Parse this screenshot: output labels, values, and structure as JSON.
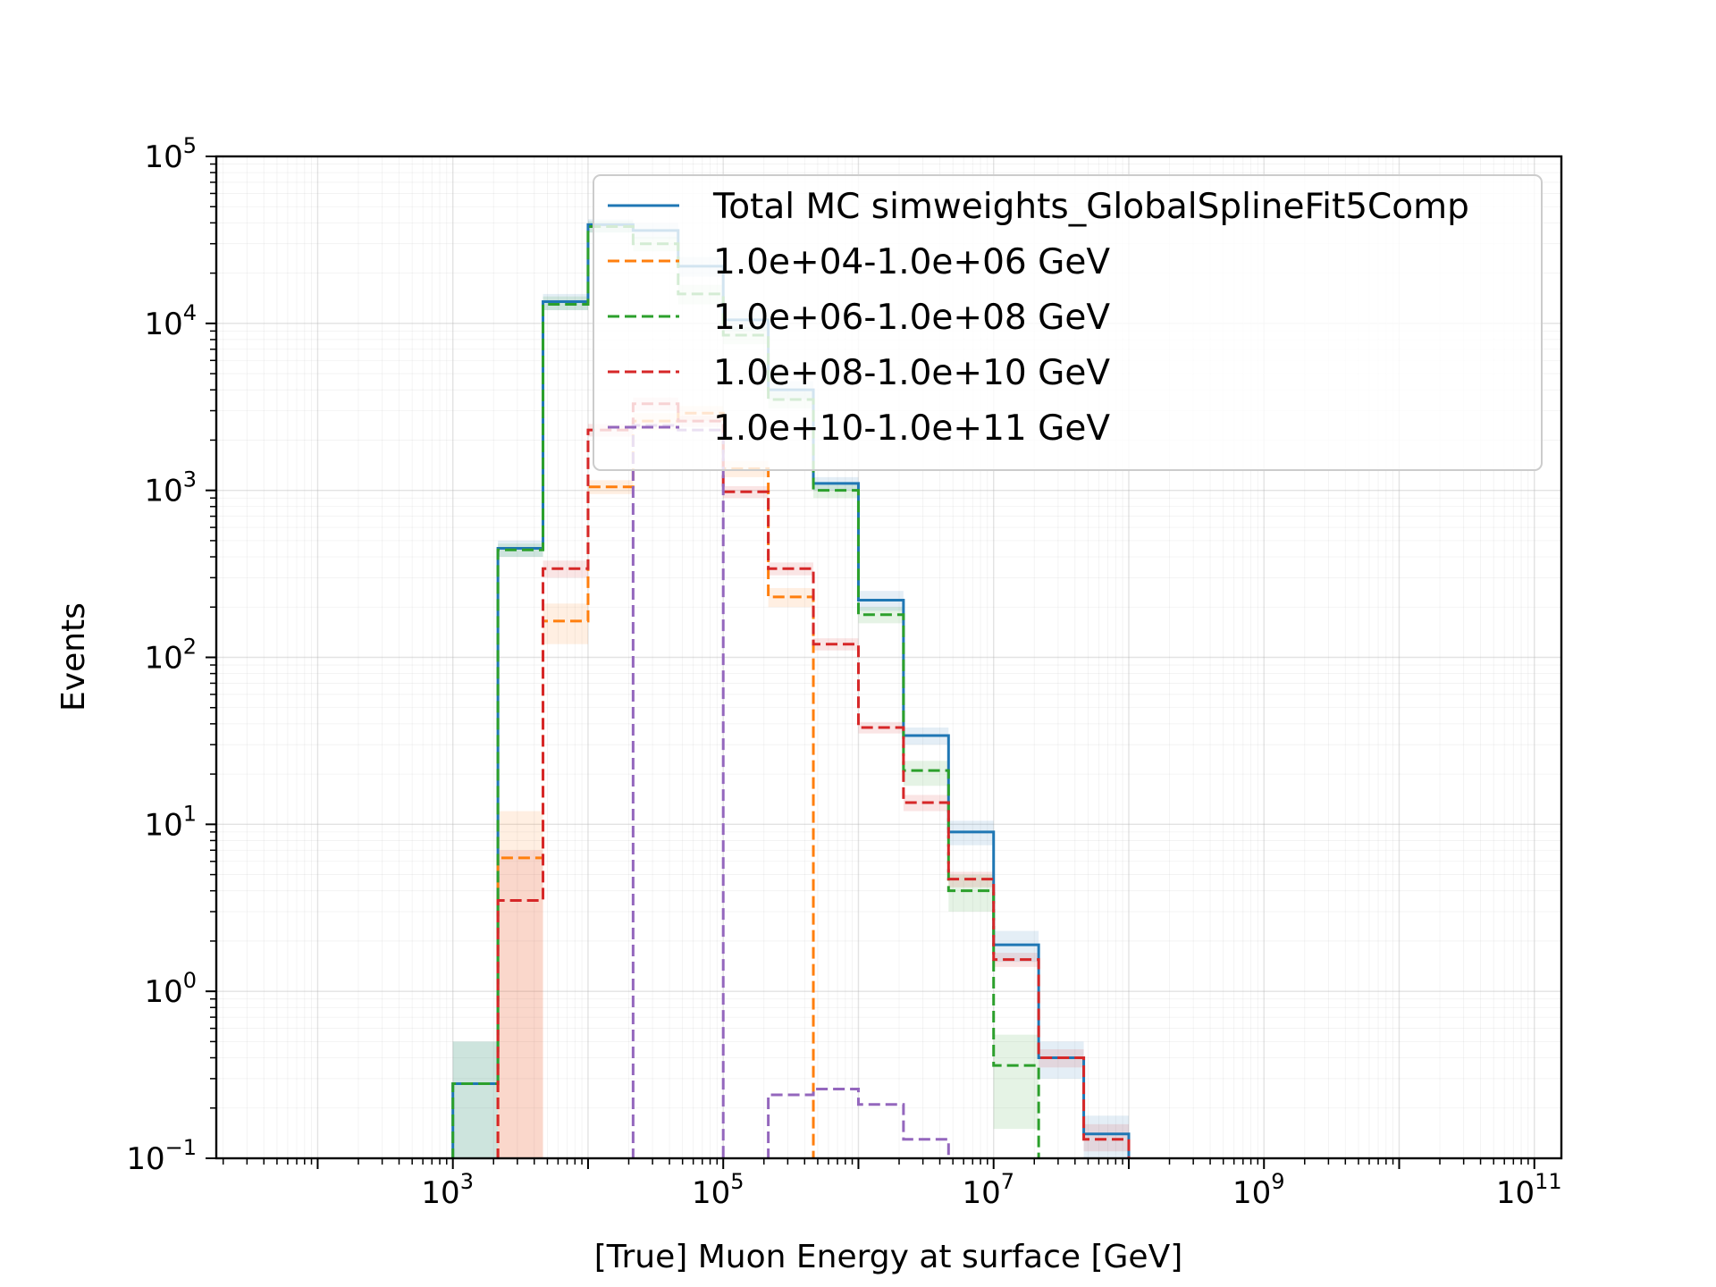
{
  "chart_data": {
    "type": "step-histogram",
    "title": "",
    "xlabel": "[True] Muon Energy at surface [GeV]",
    "ylabel": "Events",
    "xscale": "log",
    "yscale": "log",
    "xlim_log10": [
      1.25,
      11.2
    ],
    "ylim_log10": [
      -1,
      5
    ],
    "grid": true,
    "legend_position": "upper-right",
    "x_ticks": [
      {
        "base": "10",
        "exp": "3",
        "log": 3
      },
      {
        "base": "10",
        "exp": "5",
        "log": 5
      },
      {
        "base": "10",
        "exp": "7",
        "log": 7
      },
      {
        "base": "10",
        "exp": "9",
        "log": 9
      },
      {
        "base": "10",
        "exp": "11",
        "log": 11
      }
    ],
    "y_ticks": [
      {
        "base": "10",
        "exp": "−1",
        "log": -1
      },
      {
        "base": "10",
        "exp": "0",
        "log": 0
      },
      {
        "base": "10",
        "exp": "1",
        "log": 1
      },
      {
        "base": "10",
        "exp": "2",
        "log": 2
      },
      {
        "base": "10",
        "exp": "3",
        "log": 3
      },
      {
        "base": "10",
        "exp": "4",
        "log": 4
      },
      {
        "base": "10",
        "exp": "5",
        "log": 5
      }
    ],
    "bin_edges_log10": [
      3.0,
      3.3333,
      3.6667,
      4.0,
      4.3333,
      4.6667,
      5.0,
      5.3333,
      5.6667,
      6.0,
      6.3333,
      6.6667,
      7.0,
      7.3333,
      7.6667,
      8.0,
      8.3333,
      8.6667,
      9.0
    ],
    "series": [
      {
        "name": "Total MC simweights_GlobalSplineFit5Comp",
        "color": "#1f77b4",
        "dash": "solid",
        "values": [
          0.28,
          450,
          13500,
          39000,
          36000,
          22000,
          10500,
          4000,
          1100,
          220,
          34,
          9,
          1.9,
          0.4,
          0.14,
          null,
          null,
          null
        ],
        "band": [
          [
            0.1,
            0.5
          ],
          [
            400,
            500
          ],
          [
            12000,
            15000
          ],
          [
            35000,
            42000
          ],
          [
            32000,
            40000
          ],
          [
            19000,
            25000
          ],
          [
            9000,
            12000
          ],
          [
            3500,
            4500
          ],
          [
            1000,
            1200
          ],
          [
            190,
            250
          ],
          [
            30,
            38
          ],
          [
            7.5,
            10.5
          ],
          [
            1.5,
            2.3
          ],
          [
            0.3,
            0.5
          ],
          [
            0.1,
            0.18
          ],
          null,
          null,
          null
        ]
      },
      {
        "name": "1.0e+04-1.0e+06 GeV",
        "color": "#ff7f0e",
        "dash": "dashed",
        "values": [
          null,
          6.3,
          165,
          1050,
          2600,
          2900,
          1350,
          230,
          null,
          null,
          null,
          null,
          null,
          null,
          null,
          null,
          null,
          null
        ],
        "band": [
          null,
          [
            0.1,
            12
          ],
          [
            120,
            210
          ],
          [
            950,
            1150
          ],
          [
            2300,
            2900
          ],
          [
            2600,
            3200
          ],
          [
            1200,
            1500
          ],
          [
            200,
            260
          ],
          null,
          null,
          null,
          null,
          null,
          null,
          null,
          null,
          null,
          null
        ]
      },
      {
        "name": "1.0e+06-1.0e+08 GeV",
        "color": "#2ca02c",
        "dash": "dashed",
        "values": [
          0.28,
          440,
          13000,
          38000,
          30000,
          15000,
          8500,
          3500,
          1000,
          180,
          21,
          4,
          0.36,
          null,
          null,
          null,
          null,
          null
        ],
        "band": [
          [
            0.1,
            0.5
          ],
          [
            400,
            480
          ],
          [
            12000,
            14500
          ],
          [
            35000,
            41000
          ],
          [
            27000,
            33000
          ],
          [
            13000,
            17000
          ],
          [
            7500,
            9500
          ],
          [
            3100,
            3900
          ],
          [
            900,
            1100
          ],
          [
            160,
            200
          ],
          [
            17,
            24
          ],
          [
            3,
            5
          ],
          [
            0.15,
            0.55
          ],
          null,
          null,
          null,
          null,
          null
        ]
      },
      {
        "name": "1.0e+08-1.0e+10 GeV",
        "color": "#d62728",
        "dash": "dashed",
        "values": [
          null,
          3.5,
          340,
          2300,
          3300,
          2600,
          980,
          340,
          120,
          38,
          13.5,
          4.7,
          1.55,
          0.4,
          0.13,
          null,
          null,
          null
        ],
        "band": [
          null,
          [
            0.1,
            7
          ],
          [
            300,
            380
          ],
          [
            2100,
            2500
          ],
          [
            3000,
            3600
          ],
          [
            2400,
            2800
          ],
          [
            900,
            1060
          ],
          [
            310,
            370
          ],
          [
            110,
            130
          ],
          [
            35,
            41
          ],
          [
            12,
            15
          ],
          [
            4.2,
            5.2
          ],
          [
            1.4,
            1.7
          ],
          [
            0.35,
            0.45
          ],
          [
            0.11,
            0.16
          ],
          null,
          null,
          null
        ]
      },
      {
        "name": "1.0e+10-1.0e+11 GeV",
        "color": "#9467bd",
        "dash": "dashed",
        "values": [
          null,
          null,
          null,
          null,
          2450,
          2300,
          null,
          0.24,
          0.26,
          0.21,
          0.13,
          null,
          null,
          null,
          null,
          null,
          null,
          null
        ],
        "band": null
      }
    ]
  }
}
